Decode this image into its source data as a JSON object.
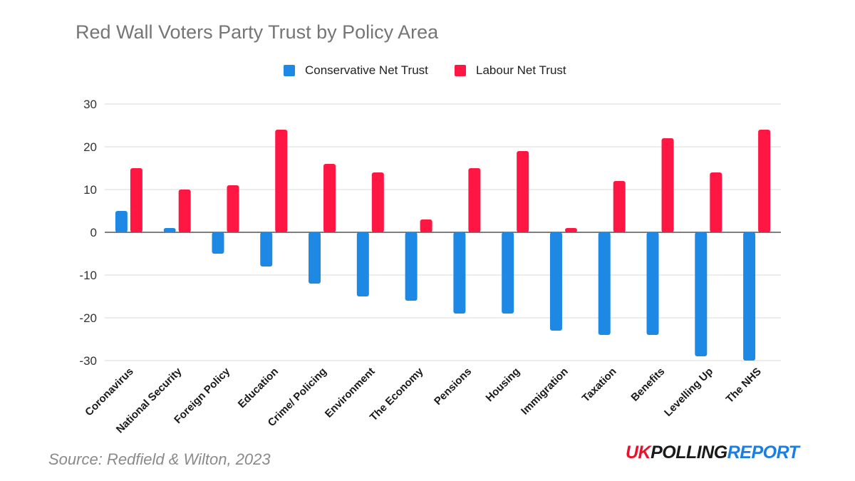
{
  "colors": {
    "conservative": "#1e88e5",
    "labour": "#ff1744",
    "grid": "#d9d9d9",
    "axis_text": "#333333"
  },
  "source_note": "Source: Redfield & Wilton, 2023",
  "brand": {
    "uk": "UK",
    "polling": "POLLING",
    "report": "REPORT"
  },
  "chart_data": {
    "type": "bar",
    "title": "Red Wall Voters Party Trust by Policy Area",
    "categories": [
      "Coronavirus",
      "National Security",
      "Foreign Policy",
      "Education",
      "Crime/ Policing",
      "Environment",
      "The Economy",
      "Pensions",
      "Housing",
      "Immigration",
      "Taxation",
      "Benefits",
      "Levelling Up",
      "The NHS"
    ],
    "series": [
      {
        "name": "Conservative Net Trust",
        "color": "#1e88e5",
        "values": [
          5,
          1,
          -5,
          -8,
          -12,
          -15,
          -16,
          -19,
          -19,
          -23,
          -24,
          -24,
          -29,
          -30
        ]
      },
      {
        "name": "Labour Net Trust",
        "color": "#ff1744",
        "values": [
          15,
          10,
          11,
          24,
          16,
          14,
          3,
          15,
          19,
          1,
          12,
          22,
          14,
          24
        ]
      }
    ],
    "ylim": [
      -30,
      30
    ],
    "yticks": [
      30,
      20,
      10,
      0,
      -10,
      -20,
      -30
    ],
    "grid": true,
    "legend_position": "top-center"
  }
}
